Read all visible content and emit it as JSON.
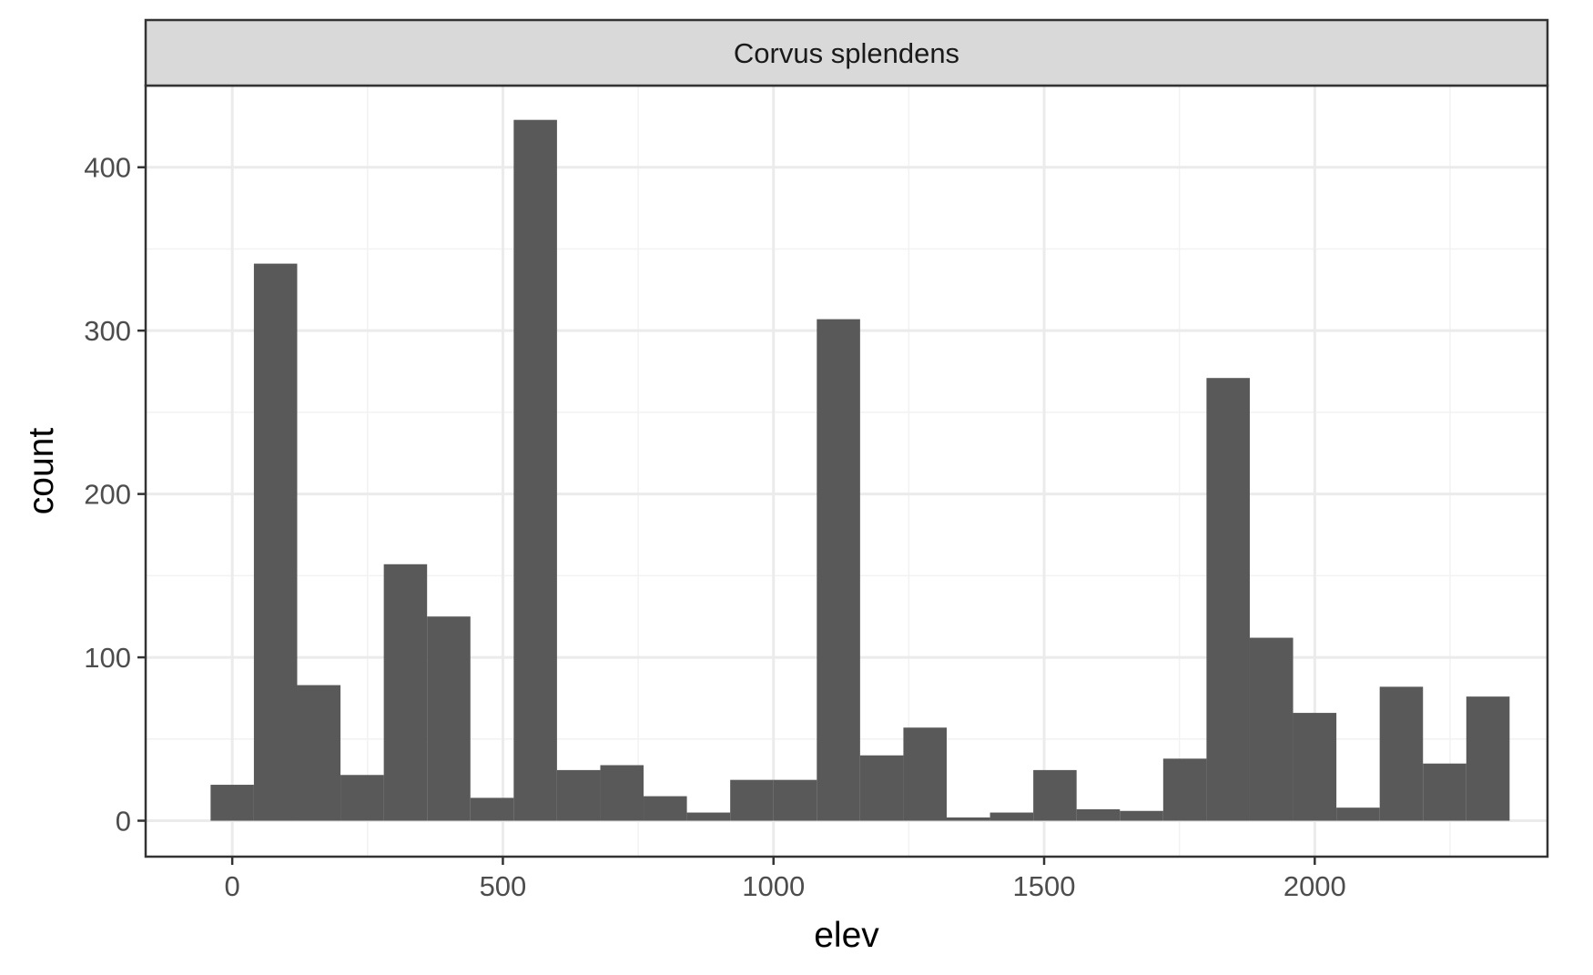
{
  "chart_data": {
    "type": "bar",
    "subtype": "histogram",
    "facet_label": "Corvus splendens",
    "xlabel": "elev",
    "ylabel": "count",
    "xlim": [
      -160,
      2430
    ],
    "ylim": [
      -22,
      450
    ],
    "x_ticks": [
      0,
      500,
      1000,
      1500,
      2000
    ],
    "y_ticks": [
      0,
      100,
      200,
      300,
      400
    ],
    "x_tick_labels": [
      "0",
      "500",
      "1000",
      "1500",
      "2000"
    ],
    "y_tick_labels": [
      "0",
      "100",
      "200",
      "300",
      "400"
    ],
    "grid": true,
    "bin_width": 80,
    "bins": [
      {
        "x_min": -40,
        "x_max": 40,
        "count": 22
      },
      {
        "x_min": 40,
        "x_max": 120,
        "count": 341
      },
      {
        "x_min": 120,
        "x_max": 200,
        "count": 83
      },
      {
        "x_min": 200,
        "x_max": 280,
        "count": 28
      },
      {
        "x_min": 280,
        "x_max": 360,
        "count": 157
      },
      {
        "x_min": 360,
        "x_max": 440,
        "count": 125
      },
      {
        "x_min": 440,
        "x_max": 520,
        "count": 14
      },
      {
        "x_min": 520,
        "x_max": 600,
        "count": 429
      },
      {
        "x_min": 600,
        "x_max": 680,
        "count": 31
      },
      {
        "x_min": 680,
        "x_max": 760,
        "count": 34
      },
      {
        "x_min": 760,
        "x_max": 840,
        "count": 15
      },
      {
        "x_min": 840,
        "x_max": 920,
        "count": 5
      },
      {
        "x_min": 920,
        "x_max": 1000,
        "count": 25
      },
      {
        "x_min": 1000,
        "x_max": 1080,
        "count": 25
      },
      {
        "x_min": 1080,
        "x_max": 1160,
        "count": 307
      },
      {
        "x_min": 1160,
        "x_max": 1240,
        "count": 40
      },
      {
        "x_min": 1240,
        "x_max": 1320,
        "count": 57
      },
      {
        "x_min": 1320,
        "x_max": 1400,
        "count": 2
      },
      {
        "x_min": 1400,
        "x_max": 1480,
        "count": 5
      },
      {
        "x_min": 1480,
        "x_max": 1560,
        "count": 31
      },
      {
        "x_min": 1560,
        "x_max": 1640,
        "count": 7
      },
      {
        "x_min": 1640,
        "x_max": 1720,
        "count": 6
      },
      {
        "x_min": 1720,
        "x_max": 1800,
        "count": 38
      },
      {
        "x_min": 1800,
        "x_max": 1880,
        "count": 271
      },
      {
        "x_min": 1880,
        "x_max": 1960,
        "count": 112
      },
      {
        "x_min": 1960,
        "x_max": 2040,
        "count": 66
      },
      {
        "x_min": 2040,
        "x_max": 2120,
        "count": 8
      },
      {
        "x_min": 2120,
        "x_max": 2200,
        "count": 82
      },
      {
        "x_min": 2200,
        "x_max": 2280,
        "count": 35
      },
      {
        "x_min": 2280,
        "x_max": 2360,
        "count": 76
      }
    ],
    "colors": {
      "bar_fill": "#595959",
      "panel_border": "#333333",
      "grid_major": "#ebebeb",
      "grid_minor": "#f2f2f2",
      "strip_fill": "#d9d9d9",
      "tick_text": "#4d4d4d"
    }
  }
}
